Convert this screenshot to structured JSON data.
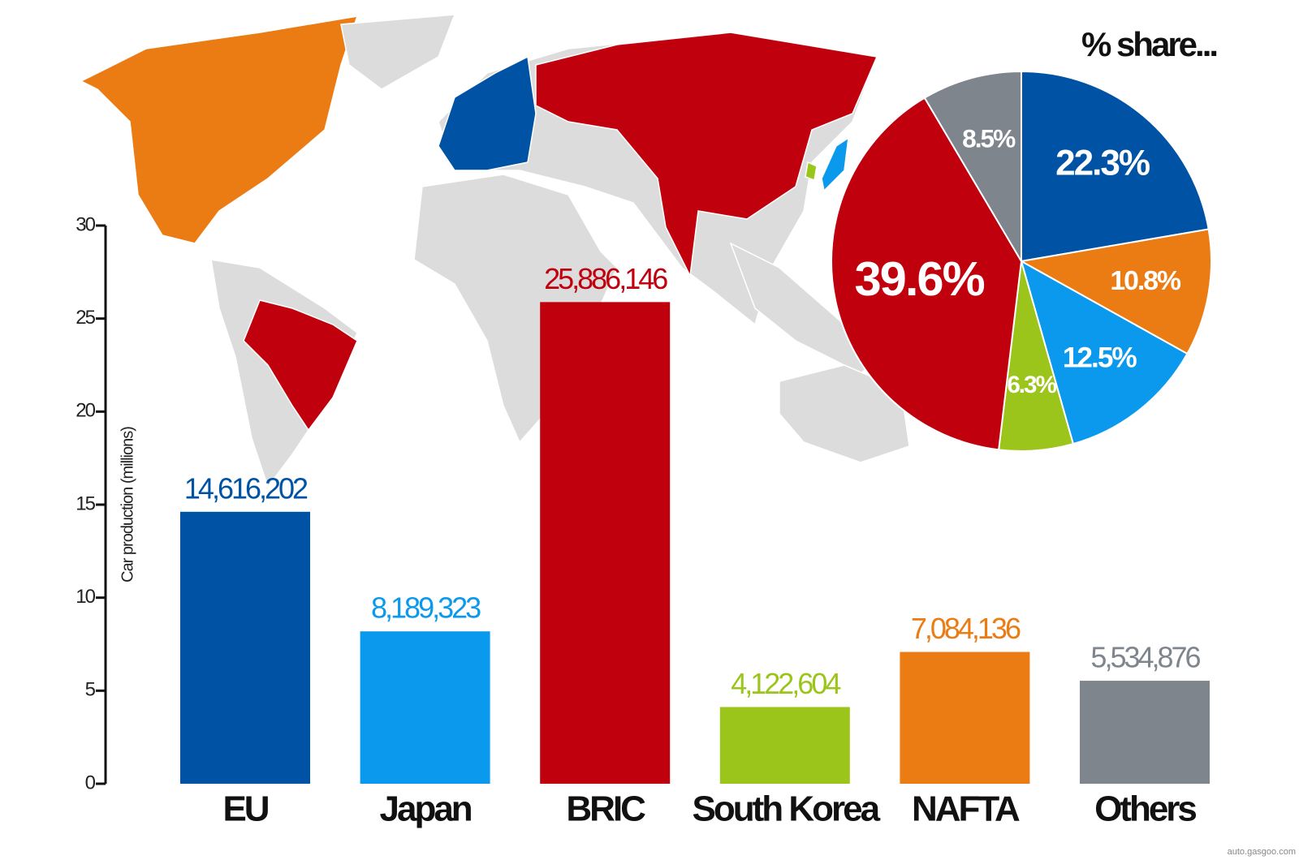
{
  "chart_data": [
    {
      "type": "bar",
      "y_label": "Car production (millions)",
      "categories": [
        "EU",
        "Japan",
        "BRIC",
        "South Korea",
        "NAFTA",
        "Others"
      ],
      "values": [
        14.616202,
        8.189323,
        25.886146,
        4.122604,
        7.084136,
        5.534876
      ],
      "value_labels": [
        "14,616,202",
        "8,189,323",
        "25,886,146",
        "4,122,604",
        "7,084,136",
        "5,534,876"
      ],
      "colors": [
        "#0053a4",
        "#0a99ec",
        "#c1000e",
        "#9cc51b",
        "#eb7c14",
        "#7f858c"
      ],
      "ylim": [
        0,
        30
      ],
      "yticks": [
        0,
        5,
        10,
        15,
        20,
        25,
        30
      ]
    },
    {
      "type": "pie",
      "title": "% share...",
      "values": [
        22.3,
        10.8,
        12.5,
        6.3,
        39.6,
        8.5
      ],
      "value_labels": [
        "22.3%",
        "10.8%",
        "12.5%",
        "6.3%",
        "39.6%",
        "8.5%"
      ],
      "colors": [
        "#0053a4",
        "#eb7c14",
        "#0a99ec",
        "#9cc51b",
        "#c1000e",
        "#7f858c"
      ]
    }
  ],
  "watermark": "auto.gasgoo.com"
}
